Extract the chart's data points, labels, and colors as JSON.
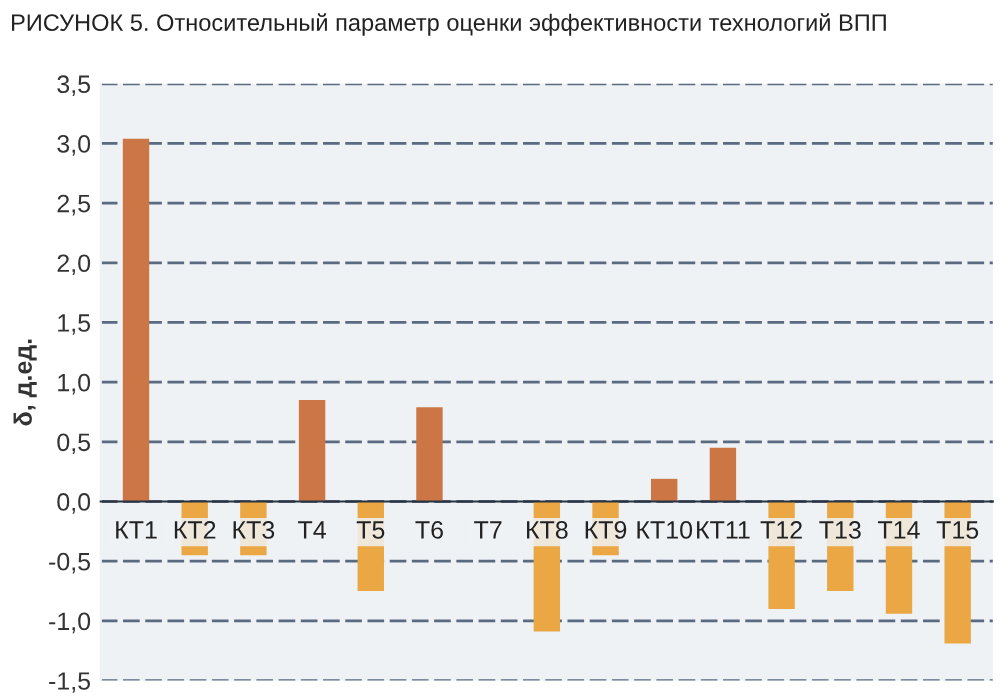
{
  "chart_data": {
    "type": "bar",
    "title": "РИСУНОК 5. Относительный параметр оценки эффективности технологий ВПП",
    "ylabel": "δ, д.ед.",
    "categories": [
      "КТ1",
      "КТ2",
      "КТ3",
      "Т4",
      "Т5",
      "Т6",
      "Т7",
      "КТ8",
      "КТ9",
      "КТ10",
      "КТ11",
      "Т12",
      "Т13",
      "Т14",
      "Т15"
    ],
    "values": [
      3.04,
      -0.45,
      -0.45,
      0.85,
      -0.75,
      0.79,
      0,
      -1.09,
      -0.45,
      0.19,
      0.45,
      -0.9,
      -0.75,
      -0.94,
      -1.19
    ],
    "colors": [
      "#cc7646",
      "#eaa744",
      "#eaa744",
      "#cc7646",
      "#eaa744",
      "#cc7646",
      "#cc7646",
      "#eaa744",
      "#eaa744",
      "#cc7646",
      "#cc7646",
      "#eaa744",
      "#eaa744",
      "#eaa744",
      "#eaa744"
    ],
    "ylim": [
      -1.5,
      3.5
    ],
    "yticks": [
      {
        "value": -1.5,
        "label": "-1,5"
      },
      {
        "value": -1.0,
        "label": "-1,0"
      },
      {
        "value": -0.5,
        "label": "-0,5"
      },
      {
        "value": 0,
        "label": "0,0"
      },
      {
        "value": 0.5,
        "label": "0,5"
      },
      {
        "value": 1.0,
        "label": "1,0"
      },
      {
        "value": 1.5,
        "label": "1,5"
      },
      {
        "value": 2.0,
        "label": "2,0"
      },
      {
        "value": 2.5,
        "label": "2,5"
      },
      {
        "value": 3.0,
        "label": "3,0"
      },
      {
        "value": 3.5,
        "label": "3,5"
      }
    ],
    "grid": "y"
  }
}
